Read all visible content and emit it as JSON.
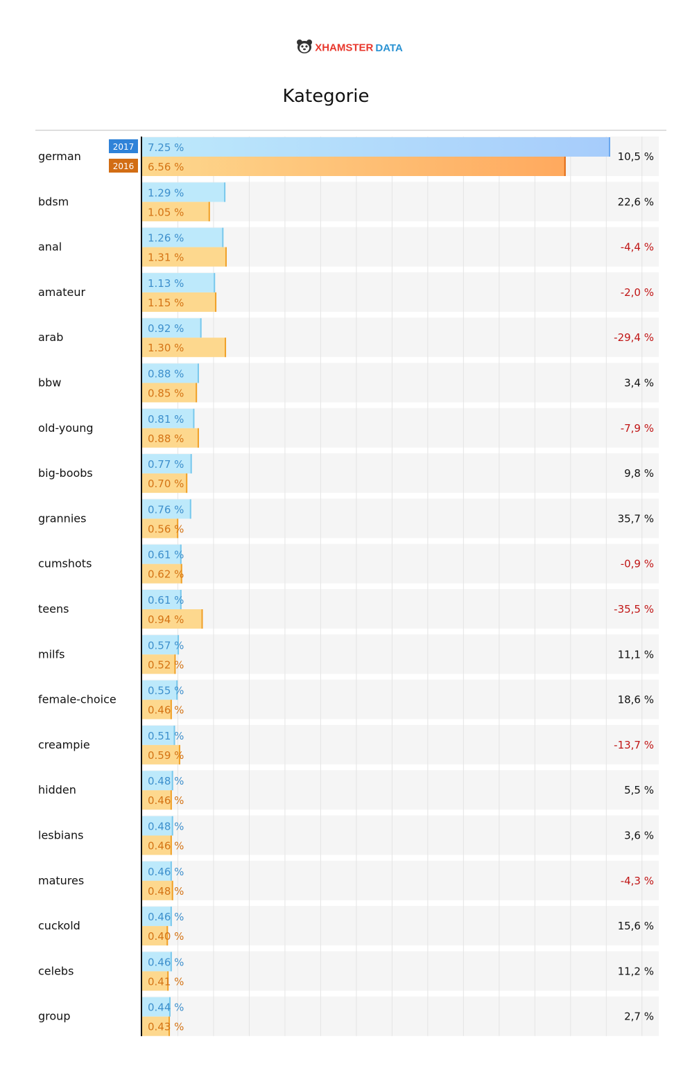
{
  "logo": {
    "brand_a": "XHAMSTER",
    "brand_b": "DATA"
  },
  "title": "Kategorie",
  "colors": {
    "bar_2017": "#bde9fb",
    "bar_2017_top": "#a6ccfb",
    "edge_2017": "#79c8ec",
    "text_2017": "#3d8fcc",
    "badge_2017": "#2f82d8",
    "bar_2016": "#fdd88e",
    "bar_2016_top": "#ffa95e",
    "edge_2016": "#f0a028",
    "text_2016": "#d47314",
    "badge_2016": "#d26d14",
    "row_bg": "#f5f5f5",
    "negative": "#c01414",
    "positive": "#111111"
  },
  "chart_data": {
    "type": "bar",
    "orientation": "horizontal",
    "title": "Kategorie",
    "xlim": [
      0,
      8
    ],
    "grid": true,
    "legend": "inline badges on first row",
    "series": [
      {
        "name": "2017",
        "values": [
          7.25,
          1.29,
          1.26,
          1.13,
          0.92,
          0.88,
          0.81,
          0.77,
          0.76,
          0.61,
          0.61,
          0.57,
          0.55,
          0.51,
          0.48,
          0.48,
          0.46,
          0.46,
          0.46,
          0.44
        ]
      },
      {
        "name": "2016",
        "values": [
          6.56,
          1.05,
          1.31,
          1.15,
          1.3,
          0.85,
          0.88,
          0.7,
          0.56,
          0.62,
          0.94,
          0.52,
          0.46,
          0.59,
          0.46,
          0.46,
          0.48,
          0.4,
          0.41,
          0.43
        ]
      }
    ],
    "categories": [
      "german",
      "bdsm",
      "anal",
      "amateur",
      "arab",
      "bbw",
      "old-young",
      "big-boobs",
      "grannies",
      "cumshots",
      "teens",
      "milfs",
      "female-choice",
      "creampie",
      "hidden",
      "lesbians",
      "matures",
      "cuckold",
      "celebs",
      "group"
    ],
    "labels_2017": [
      "7.25 %",
      "1.29 %",
      "1.26 %",
      "1.13 %",
      "0.92 %",
      "0.88 %",
      "0.81 %",
      "0.77 %",
      "0.76 %",
      "0.61 %",
      "0.61 %",
      "0.57 %",
      "0.55 %",
      "0.51 %",
      "0.48 %",
      "0.48 %",
      "0.46 %",
      "0.46 %",
      "0.46 %",
      "0.44 %"
    ],
    "labels_2016": [
      "6.56 %",
      "1.05 %",
      "1.31 %",
      "1.15 %",
      "1.30 %",
      "0.85 %",
      "0.88 %",
      "0.70 %",
      "0.56 %",
      "0.62 %",
      "0.94 %",
      "0.52 %",
      "0.46 %",
      "0.59 %",
      "0.46 %",
      "0.46 %",
      "0.48 %",
      "0.40 %",
      "0.41 %",
      "0.43 %"
    ],
    "change": [
      10.5,
      22.6,
      -4.4,
      -2.0,
      -29.4,
      3.4,
      -7.9,
      9.8,
      35.7,
      -0.9,
      -35.5,
      11.1,
      18.6,
      -13.7,
      5.5,
      3.6,
      -4.3,
      15.6,
      11.2,
      2.7
    ],
    "change_labels": [
      "10,5 %",
      "22,6 %",
      "-4,4 %",
      "-2,0 %",
      "-29,4 %",
      "3,4 %",
      "-7,9 %",
      "9,8 %",
      "35,7 %",
      "-0,9 %",
      "-35,5 %",
      "11,1 %",
      "18,6 %",
      "-13,7 %",
      "5,5 %",
      "3,6 %",
      "-4,3 %",
      "15,6 %",
      "11,2 %",
      "2,7 %"
    ]
  }
}
